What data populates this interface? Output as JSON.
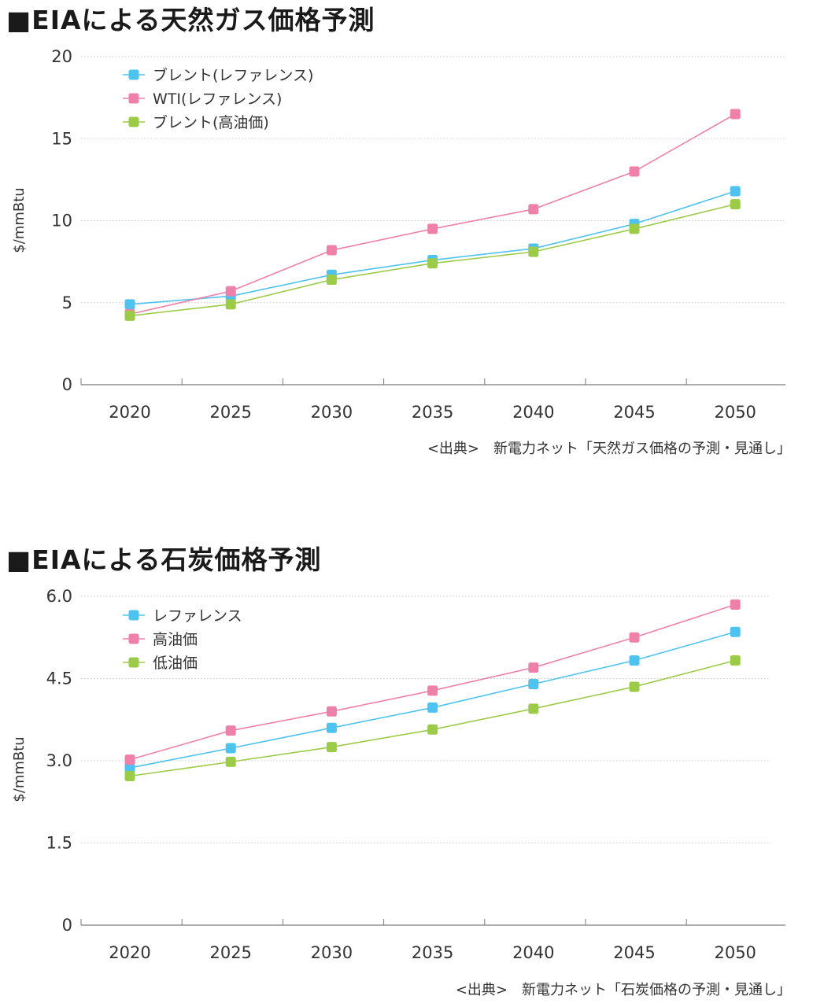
{
  "charts": [
    {
      "title": "■EIAによる天然ガス価格予測",
      "source": "<出典>　新電力ネット「天然ガス価格の予測・見通し」"
    },
    {
      "title": "■EIAによる石炭価格予測",
      "source": "<出典>　新電力ネット「石炭価格の予測・見通し」"
    }
  ],
  "chart_data": [
    {
      "type": "line",
      "title": "■EIAによる天然ガス価格予測",
      "ylabel": "$/mmBtu",
      "xlabel": "",
      "categories": [
        "2020",
        "2025",
        "2030",
        "2035",
        "2040",
        "2045",
        "2050"
      ],
      "yticks": [
        "0",
        "5",
        "10",
        "15",
        "20"
      ],
      "ylim": [
        0,
        20
      ],
      "grid": "horizontal dotted",
      "legend_position": "top-left",
      "series": [
        {
          "name": "ブレント(レファレンス)",
          "color": "#4fc3f0",
          "values": [
            4.9,
            5.4,
            6.7,
            7.6,
            8.3,
            9.8,
            11.8
          ]
        },
        {
          "name": "WTI(レファレンス)",
          "color": "#ee80aa",
          "values": [
            4.3,
            5.7,
            8.2,
            9.5,
            10.7,
            13.0,
            16.5
          ]
        },
        {
          "name": "ブレント(高油価)",
          "color": "#9ccb48",
          "values": [
            4.2,
            4.9,
            6.4,
            7.4,
            8.1,
            9.5,
            11.0
          ]
        }
      ]
    },
    {
      "type": "line",
      "title": "■EIAによる石炭価格予測",
      "ylabel": "$/mmBtu",
      "xlabel": "",
      "categories": [
        "2020",
        "2025",
        "2030",
        "2035",
        "2040",
        "2045",
        "2050"
      ],
      "yticks": [
        "0",
        "1.5",
        "3.0",
        "4.5",
        "6.0"
      ],
      "ylim": [
        0,
        6.0
      ],
      "grid": "horizontal dotted",
      "legend_position": "top-left",
      "series": [
        {
          "name": "レファレンス",
          "color": "#4fc3f0",
          "values": [
            2.87,
            3.23,
            3.6,
            3.97,
            4.4,
            4.83,
            5.35
          ]
        },
        {
          "name": "高油価",
          "color": "#ee80aa",
          "values": [
            3.02,
            3.55,
            3.9,
            4.28,
            4.7,
            5.25,
            5.85
          ]
        },
        {
          "name": "低油価",
          "color": "#9ccb48",
          "values": [
            2.72,
            2.98,
            3.25,
            3.57,
            3.95,
            4.35,
            4.83
          ]
        }
      ]
    }
  ]
}
